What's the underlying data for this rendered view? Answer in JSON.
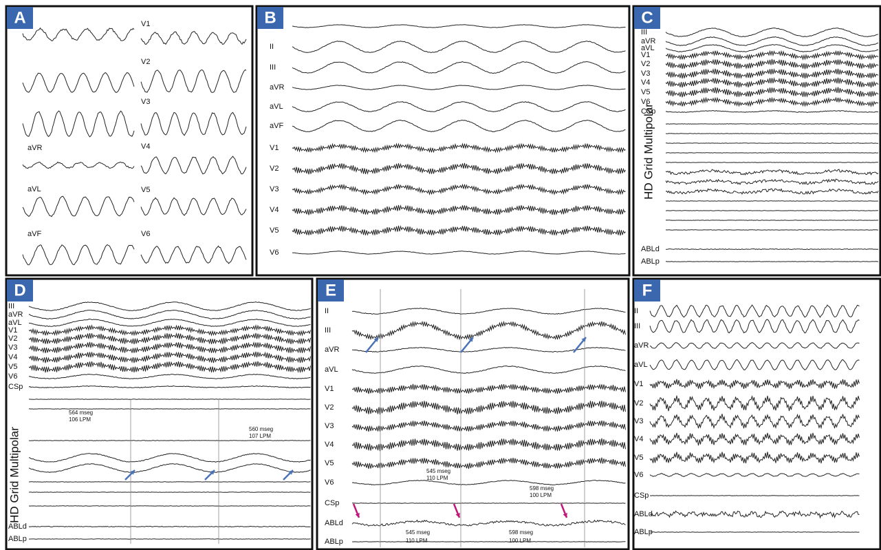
{
  "panels": [
    {
      "letter": "A",
      "leads": [
        "V1",
        "V2",
        "V3",
        "aVR",
        "V4",
        "aVL",
        "V5",
        "aVF",
        "V6"
      ]
    },
    {
      "letter": "B",
      "leads": [
        "II",
        "III",
        "aVR",
        "aVL",
        "aVF",
        "V1",
        "V2",
        "V3",
        "V4",
        "V5",
        "V6"
      ]
    },
    {
      "letter": "C",
      "leads": [
        "III",
        "aVR",
        "aVL",
        "V1",
        "V2",
        "V3",
        "V4",
        "V5",
        "V6",
        "CSp",
        "ABLd",
        "ABLp"
      ],
      "side_label": "HD Grid Multipolar"
    },
    {
      "letter": "D",
      "leads": [
        "III",
        "aVR",
        "aVL",
        "V1",
        "V2",
        "V3",
        "V4",
        "V5",
        "V6",
        "CSp",
        "ABLd",
        "ABLp"
      ],
      "side_label": "HD Grid Multipolar",
      "annotations": [
        "564 mseg",
        "106 LPM",
        "560 mseg",
        "107 LPM"
      ]
    },
    {
      "letter": "E",
      "leads": [
        "II",
        "III",
        "aVR",
        "aVL",
        "V1",
        "V2",
        "V3",
        "V4",
        "V5",
        "V6",
        "CSp",
        "ABLd",
        "ABLp"
      ],
      "annotations": [
        "545 mseg",
        "110 LPM",
        "598 mseg",
        "100 LPM",
        "545 mseg",
        "110 LPM",
        "598 mseg",
        "100 LPM"
      ]
    },
    {
      "letter": "F",
      "leads": [
        "II",
        "III",
        "aVR",
        "aVL",
        "V1",
        "V2",
        "V3",
        "V4",
        "V5",
        "V6",
        "CSp",
        "ABLd",
        "ABLp"
      ]
    }
  ]
}
